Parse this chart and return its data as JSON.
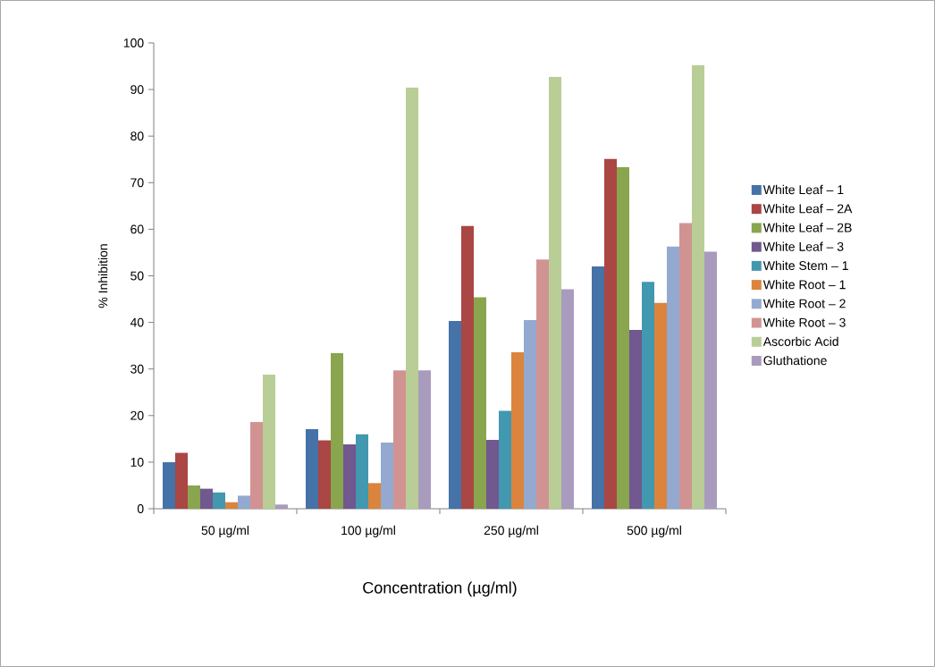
{
  "chart_data": {
    "type": "bar",
    "xlabel": "Concentration (µg/ml)",
    "ylabel": "% Inhibition",
    "categories": [
      "50 µg/ml",
      "100 µg/ml",
      "250 µg/ml",
      "500 µg/ml"
    ],
    "ylim": [
      0,
      100
    ],
    "yticks": [
      0,
      10,
      20,
      30,
      40,
      50,
      60,
      70,
      80,
      90,
      100
    ],
    "legend": "right",
    "grid": false,
    "series": [
      {
        "name": "White Leaf – 1",
        "color": "#4572a7",
        "values": [
          10,
          17.1,
          40.3,
          52
        ]
      },
      {
        "name": "White Leaf – 2A",
        "color": "#aa4643",
        "values": [
          12,
          14.7,
          60.7,
          75.1
        ]
      },
      {
        "name": "White Leaf – 2B",
        "color": "#89a54e",
        "values": [
          5,
          33.4,
          45.4,
          73.3
        ]
      },
      {
        "name": "White Leaf – 3",
        "color": "#71588f",
        "values": [
          4.3,
          13.8,
          14.8,
          38.4
        ]
      },
      {
        "name": "White Stem – 1",
        "color": "#4198af",
        "values": [
          3.5,
          16,
          21,
          48.7
        ]
      },
      {
        "name": "White Root – 1",
        "color": "#db843d",
        "values": [
          1.4,
          5.5,
          33.6,
          44.2
        ]
      },
      {
        "name": "White Root – 2",
        "color": "#93a9cf",
        "values": [
          2.8,
          14.2,
          40.5,
          56.3
        ]
      },
      {
        "name": "White Root – 3",
        "color": "#d19392",
        "values": [
          18.6,
          29.7,
          53.5,
          61.3
        ]
      },
      {
        "name": "Ascorbic Acid",
        "color": "#b9cd96",
        "values": [
          28.8,
          90.4,
          92.7,
          95.2
        ]
      },
      {
        "name": "Gluthatione",
        "color": "#a99bbd",
        "values": [
          0.9,
          29.7,
          47.1,
          55.2
        ]
      }
    ]
  }
}
